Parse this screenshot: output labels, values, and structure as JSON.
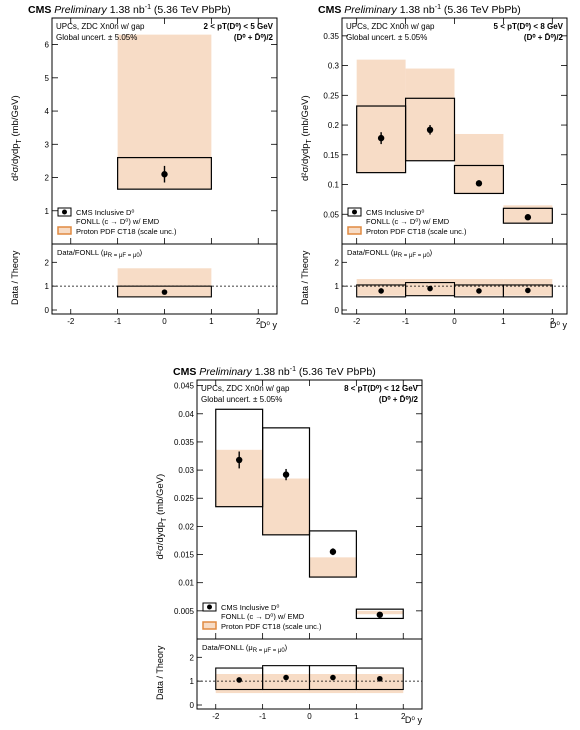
{
  "colors": {
    "band": "#f7dcc6",
    "legend_band_edge": "#e08a40",
    "frame": "#000000",
    "ref_line": "#000000",
    "box_edge": "#000000"
  },
  "common": {
    "title_bold": "CMS",
    "title_italic": "Preliminary",
    "title_lumi": "1.38 nb",
    "title_lumi_sup": "-1",
    "title_energy": "(5.36 TeV PbPb)",
    "info_line1": "UPCs, ZDC Xn0n w/ gap",
    "info_line2": "Global uncert. ± 5.05%",
    "species": "(D⁰ + D̄⁰)/2",
    "ylabel_top": "d²σ/dydp",
    "ylabel_top_sub": "T",
    "ylabel_top_unit": " (mb/GeV)",
    "ylabel_bottom": "Data / Theory",
    "ratio_label": "Data/FONLL (μ",
    "ratio_label_rest": "R = μF = μ0)",
    "xlabel": "D⁰ y",
    "legend": [
      "CMS Inclusive D⁰",
      "FONLL (c → D⁰) w/ EMD",
      "Proton PDF CT18 (scale unc.)"
    ]
  },
  "chart_data": [
    {
      "type": "bar",
      "pt_range": "2 < pT(D⁰) < 5 GeV",
      "xlim": [
        -2.4,
        2.4
      ],
      "ylim": [
        0,
        6.8
      ],
      "yticks": [
        1,
        2,
        3,
        4,
        5,
        6
      ],
      "xticks": [
        -2,
        -1,
        0,
        1,
        2
      ],
      "ratio_ylim": [
        0,
        2.6
      ],
      "ratio_yticks": [
        0,
        1,
        2
      ],
      "bins": [
        {
          "x": [
            -1,
            1
          ],
          "data": 2.1,
          "data_err": 0.25,
          "fonll": 2.6,
          "fonll_lo": 1.65,
          "fonll_hi": 6.3,
          "ratio": 0.75,
          "ratio_err": 0.08,
          "ratio_box": [
            0.55,
            1.0
          ],
          "ratio_band": [
            0.55,
            1.75
          ]
        }
      ]
    },
    {
      "type": "bar",
      "pt_range": "5 < pT(D⁰) < 8 GeV",
      "xlim": [
        -2.3,
        2.3
      ],
      "ylim": [
        0,
        0.38
      ],
      "yticks": [
        0.05,
        0.1,
        0.15,
        0.2,
        0.25,
        0.3,
        0.35
      ],
      "xticks": [
        -2,
        -1,
        0,
        1,
        2
      ],
      "ratio_ylim": [
        0,
        2.6
      ],
      "ratio_yticks": [
        0,
        1,
        2
      ],
      "bins": [
        {
          "x": [
            -2,
            -1
          ],
          "data": 0.178,
          "data_err": 0.01,
          "fonll": 0.232,
          "fonll_lo": 0.12,
          "fonll_hi": 0.31,
          "ratio": 0.8,
          "ratio_err": 0.05,
          "ratio_box": [
            0.55,
            1.05
          ],
          "ratio_band": [
            0.6,
            1.3
          ]
        },
        {
          "x": [
            -1,
            0
          ],
          "data": 0.192,
          "data_err": 0.008,
          "fonll": 0.245,
          "fonll_lo": 0.14,
          "fonll_hi": 0.295,
          "ratio": 0.9,
          "ratio_err": 0.05,
          "ratio_box": [
            0.6,
            1.15
          ],
          "ratio_band": [
            0.6,
            1.3
          ]
        },
        {
          "x": [
            0,
            1
          ],
          "data": 0.102,
          "data_err": 0.005,
          "fonll": 0.132,
          "fonll_lo": 0.085,
          "fonll_hi": 0.185,
          "ratio": 0.8,
          "ratio_err": 0.05,
          "ratio_box": [
            0.55,
            1.05
          ],
          "ratio_band": [
            0.6,
            1.3
          ]
        },
        {
          "x": [
            1,
            2
          ],
          "data": 0.045,
          "data_err": 0.003,
          "fonll": 0.06,
          "fonll_lo": 0.035,
          "fonll_hi": 0.065,
          "ratio": 0.82,
          "ratio_err": 0.05,
          "ratio_box": [
            0.55,
            1.05
          ],
          "ratio_band": [
            0.6,
            1.3
          ]
        }
      ]
    },
    {
      "type": "bar",
      "pt_range": "8 < pT(D⁰) < 12 GeV",
      "xlim": [
        -2.4,
        2.4
      ],
      "ylim": [
        0,
        0.046
      ],
      "yticks": [
        0.005,
        0.01,
        0.015,
        0.02,
        0.025,
        0.03,
        0.035,
        0.04,
        0.045
      ],
      "xticks": [
        -2,
        -1,
        0,
        1,
        2
      ],
      "ratio_ylim": [
        0,
        2.6
      ],
      "ratio_yticks": [
        0,
        1,
        2
      ],
      "bins": [
        {
          "x": [
            -2,
            -1
          ],
          "data": 0.0318,
          "data_err": 0.0015,
          "fonll": 0.0408,
          "fonll_lo": 0.0235,
          "fonll_hi": 0.0336,
          "ratio": 1.05,
          "ratio_err": 0.08,
          "ratio_box": [
            0.65,
            1.55
          ],
          "ratio_band": [
            0.5,
            1.3
          ]
        },
        {
          "x": [
            -1,
            0
          ],
          "data": 0.0292,
          "data_err": 0.001,
          "fonll": 0.0375,
          "fonll_lo": 0.0185,
          "fonll_hi": 0.0285,
          "ratio": 1.15,
          "ratio_err": 0.08,
          "ratio_box": [
            0.65,
            1.65
          ],
          "ratio_band": [
            0.5,
            1.3
          ]
        },
        {
          "x": [
            0,
            1
          ],
          "data": 0.0155,
          "data_err": 0.0006,
          "fonll": 0.0192,
          "fonll_lo": 0.011,
          "fonll_hi": 0.0145,
          "ratio": 1.15,
          "ratio_err": 0.08,
          "ratio_box": [
            0.65,
            1.65
          ],
          "ratio_band": [
            0.5,
            1.3
          ]
        },
        {
          "x": [
            1,
            2
          ],
          "data": 0.0043,
          "data_err": 0.0003,
          "fonll": 0.0053,
          "fonll_lo": 0.0044,
          "fonll_hi": 0.005,
          "ratio": 1.1,
          "ratio_err": 0.08,
          "ratio_box": [
            0.65,
            1.55
          ],
          "ratio_band": [
            0.5,
            1.3
          ]
        }
      ]
    }
  ]
}
